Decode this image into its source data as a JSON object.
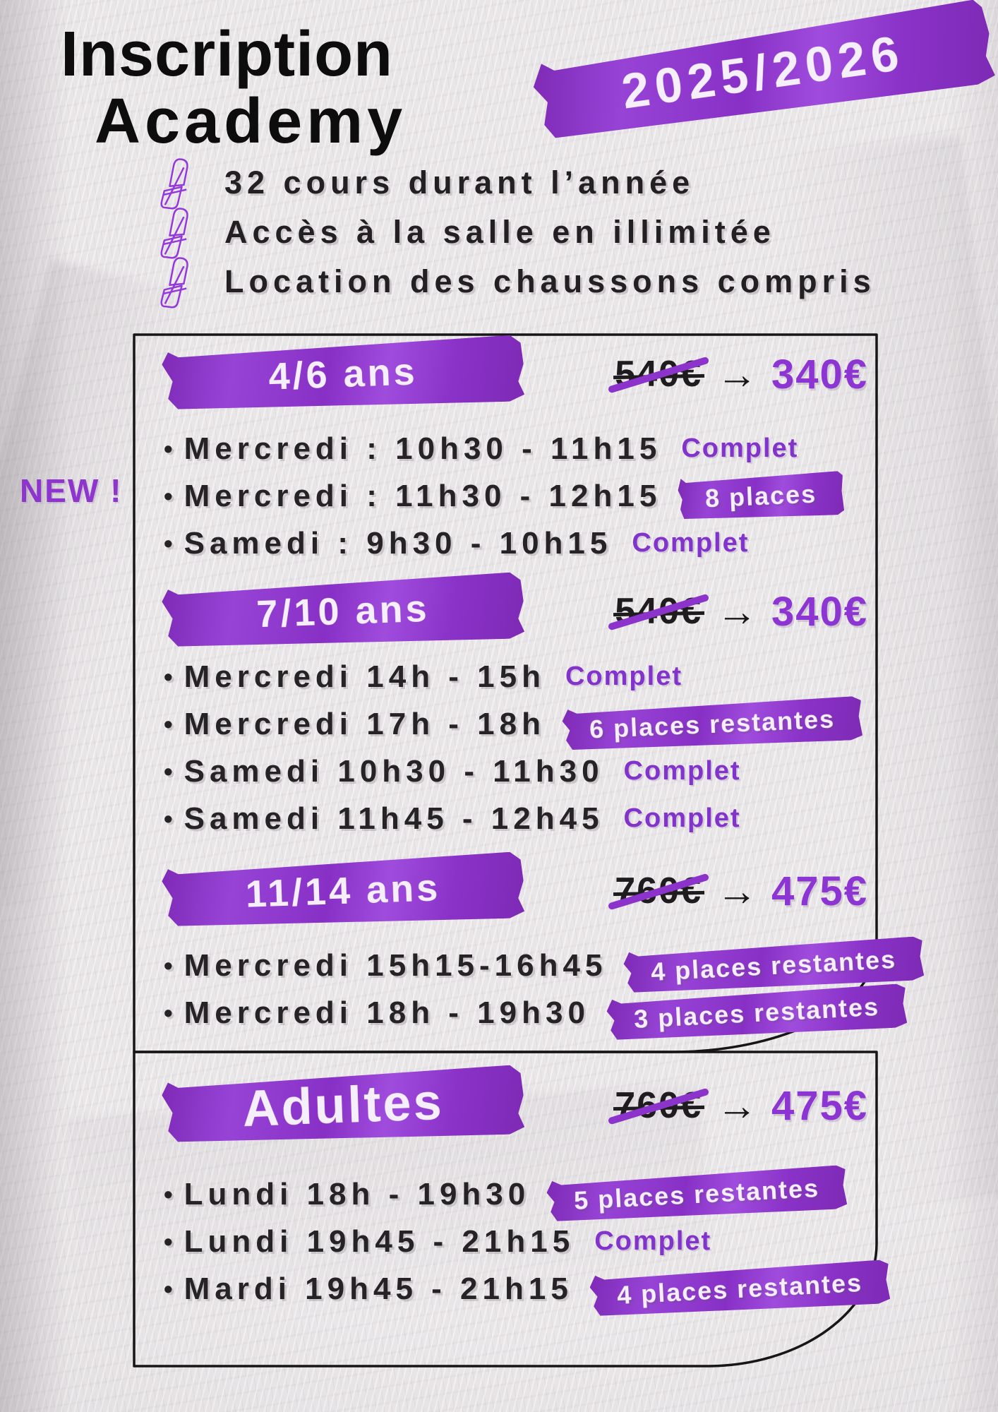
{
  "page": {
    "title_line1": "Inscription",
    "title_line2": "Academy",
    "year_tape": "2025/2026",
    "new_badge": "NEW !",
    "course_bullet": "•",
    "price_arrow": "→"
  },
  "colors": {
    "accent": "#8c33cb",
    "accent_text": "#8233cb",
    "new_price": "#8d35d2",
    "ink": "#1a181a",
    "background": "#e9e6e8",
    "tape_text": "#f5eefb"
  },
  "benefits": [
    {
      "icon": "academy-logo-icon",
      "label": "32 cours durant l’année"
    },
    {
      "icon": "academy-logo-icon",
      "label": "Accès à la salle en illimitée"
    },
    {
      "icon": "academy-logo-icon",
      "label": "Location des chaussons compris"
    }
  ],
  "sections": [
    {
      "label": "4/6 ans",
      "old_price": "540€",
      "new_price": "340€",
      "courses": [
        {
          "time": "Mercredi : 10h30 - 11h15",
          "status": "Complet",
          "status_type": "text",
          "is_new": false
        },
        {
          "time": "Mercredi : 11h30 - 12h15",
          "status": "8 places",
          "status_type": "tape",
          "is_new": true
        },
        {
          "time": "Samedi :  9h30  - 10h15",
          "status": "Complet",
          "status_type": "text",
          "is_new": false
        }
      ]
    },
    {
      "label": "7/10 ans",
      "old_price": "540€",
      "new_price": "340€",
      "courses": [
        {
          "time": "Mercredi 14h - 15h",
          "status": "Complet",
          "status_type": "text",
          "is_new": false
        },
        {
          "time": "Mercredi 17h - 18h",
          "status": "6 places restantes",
          "status_type": "tape",
          "is_new": false
        },
        {
          "time": "Samedi 10h30 - 11h30",
          "status": "Complet",
          "status_type": "text",
          "is_new": false
        },
        {
          "time": "Samedi 11h45 - 12h45",
          "status": "Complet",
          "status_type": "text",
          "is_new": false
        }
      ]
    },
    {
      "label": "11/14 ans",
      "old_price": "760€",
      "new_price": "475€",
      "courses": [
        {
          "time": "Mercredi 15h15-16h45",
          "status": "4 places restantes",
          "status_type": "tape",
          "is_new": false
        },
        {
          "time": "Mercredi 18h - 19h30",
          "status": "3 places restantes",
          "status_type": "tape",
          "is_new": false
        }
      ]
    },
    {
      "label": "Adultes",
      "old_price": "760€",
      "new_price": "475€",
      "courses": [
        {
          "time": "Lundi 18h - 19h30",
          "status": "5 places restantes",
          "status_type": "tape",
          "is_new": false
        },
        {
          "time": "Lundi 19h45 - 21h15",
          "status": "Complet",
          "status_type": "text",
          "is_new": false
        },
        {
          "time": "Mardi 19h45 - 21h15",
          "status": "4 places restantes",
          "status_type": "tape",
          "is_new": false
        }
      ]
    }
  ]
}
